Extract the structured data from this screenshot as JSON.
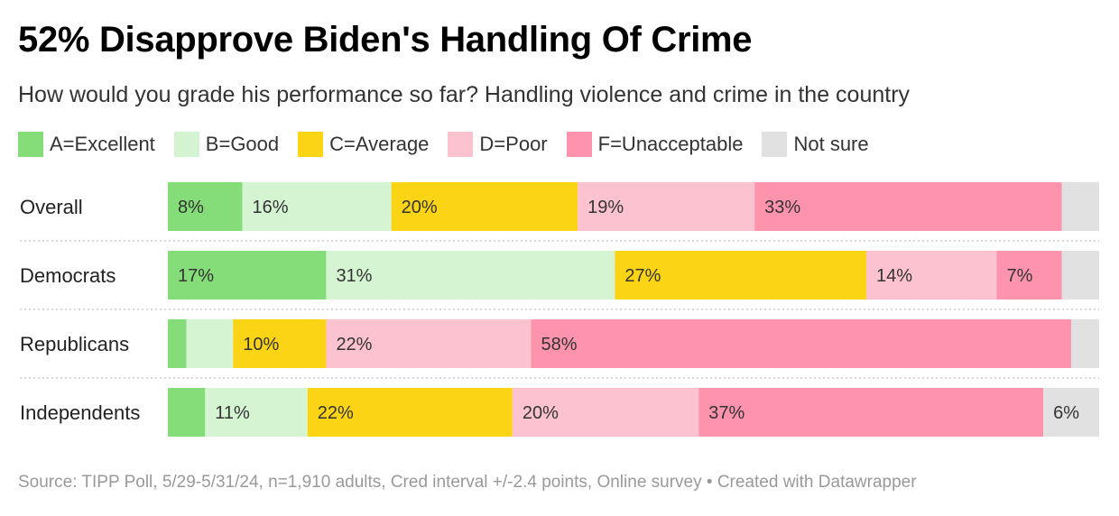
{
  "header": {
    "title": "52% Disapprove Biden's Handling Of Crime",
    "subtitle": "How would you grade his performance so far? Handling violence and crime in the country"
  },
  "chart_data": {
    "type": "bar",
    "orientation": "horizontal",
    "stacked": true,
    "unit": "%",
    "categories": [
      "Overall",
      "Democrats",
      "Republicans",
      "Independents"
    ],
    "series": [
      {
        "name": "A=Excellent",
        "color": "#84dd78",
        "values": [
          8,
          17,
          2,
          4
        ],
        "labels": [
          "8%",
          "17%",
          "",
          ""
        ]
      },
      {
        "name": "B=Good",
        "color": "#d5f4d2",
        "values": [
          16,
          31,
          5,
          11
        ],
        "labels": [
          "16%",
          "31%",
          "",
          "11%"
        ]
      },
      {
        "name": "C=Average",
        "color": "#fcd416",
        "values": [
          20,
          27,
          10,
          22
        ],
        "labels": [
          "20%",
          "27%",
          "10%",
          "22%"
        ]
      },
      {
        "name": "D=Poor",
        "color": "#fcc2d0",
        "values": [
          19,
          14,
          22,
          20
        ],
        "labels": [
          "19%",
          "14%",
          "22%",
          "20%"
        ]
      },
      {
        "name": "F=Unacceptable",
        "color": "#fd93ad",
        "values": [
          33,
          7,
          58,
          37
        ],
        "labels": [
          "33%",
          "7%",
          "58%",
          "37%"
        ]
      },
      {
        "name": "Not sure",
        "color": "#e1e1e1",
        "values": [
          4,
          4,
          3,
          6
        ],
        "labels": [
          "",
          "",
          "",
          "6%"
        ]
      }
    ]
  },
  "footer": {
    "source": "Source: TIPP Poll, 5/29-5/31/24, n=1,910 adults, Cred interval +/-2.4 points, Online survey • Created with Datawrapper"
  }
}
